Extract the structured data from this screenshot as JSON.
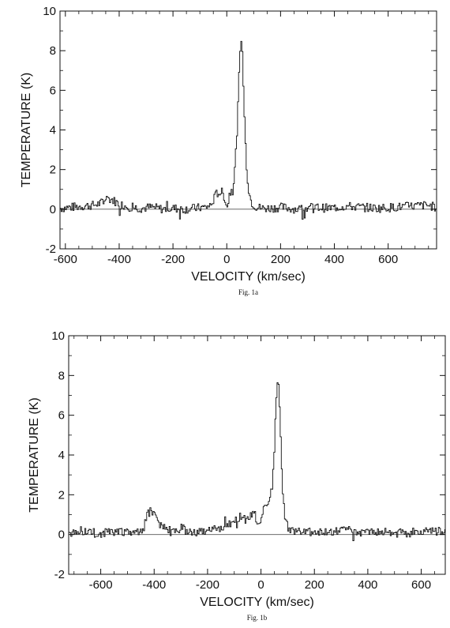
{
  "chart_data": [
    {
      "type": "line",
      "xlabel": "VELOCITY (km/sec)",
      "ylabel": "TEMPERATURE (K)",
      "caption": "Fig. 1a",
      "xlim": [
        -620,
        780
      ],
      "ylim": [
        -2,
        10
      ],
      "xticks": [
        -600,
        -400,
        -200,
        0,
        200,
        400,
        600
      ],
      "yticks": [
        -2,
        0,
        2,
        4,
        6,
        8,
        10
      ],
      "grid": false,
      "series": [
        {
          "style": "step",
          "x": [
            -620,
            -580,
            -540,
            -500,
            -470,
            -450,
            -430,
            -400,
            -360,
            -320,
            -280,
            -240,
            -200,
            -160,
            -120,
            -80,
            -60,
            -40,
            -20,
            -10,
            0,
            10,
            20,
            25,
            30,
            35,
            40,
            45,
            50,
            55,
            60,
            65,
            70,
            75,
            80,
            85,
            90,
            100,
            110,
            130,
            160,
            200,
            260,
            320,
            380,
            440,
            500,
            560,
            620,
            680,
            740,
            780
          ],
          "y": [
            0.05,
            0.1,
            0.15,
            0.2,
            0.3,
            0.55,
            0.5,
            0.25,
            0.1,
            0.05,
            0.1,
            0.0,
            0.05,
            0.0,
            0.05,
            0.1,
            0.2,
            0.8,
            0.85,
            0.6,
            0.1,
            0.9,
            0.9,
            1.5,
            2.4,
            3.6,
            5.2,
            7.2,
            8.5,
            8.3,
            6.3,
            4.2,
            2.6,
            1.6,
            1.0,
            0.6,
            0.35,
            0.2,
            0.1,
            0.05,
            0.05,
            0.1,
            0.0,
            0.1,
            0.05,
            0.15,
            0.1,
            0.05,
            0.1,
            0.15,
            0.2,
            0.1
          ]
        }
      ]
    },
    {
      "type": "line",
      "xlabel": "VELOCITY (km/sec)",
      "ylabel": "TEMPERATURE (K)",
      "caption": "Fig. 1b",
      "xlim": [
        -720,
        690
      ],
      "ylim": [
        -2,
        10
      ],
      "xticks": [
        -600,
        -400,
        -200,
        0,
        200,
        400,
        600
      ],
      "yticks": [
        -2,
        0,
        2,
        4,
        6,
        8,
        10
      ],
      "grid": false,
      "series": [
        {
          "style": "step",
          "x": [
            -720,
            -680,
            -640,
            -600,
            -560,
            -520,
            -480,
            -460,
            -440,
            -430,
            -420,
            -410,
            -400,
            -380,
            -360,
            -340,
            -300,
            -260,
            -220,
            -180,
            -140,
            -100,
            -80,
            -60,
            -40,
            -30,
            -20,
            -10,
            0,
            10,
            20,
            30,
            40,
            45,
            50,
            55,
            60,
            65,
            70,
            75,
            80,
            85,
            90,
            100,
            110,
            130,
            160,
            200,
            260,
            320,
            380,
            440,
            500,
            560,
            620,
            690
          ],
          "y": [
            0.1,
            0.2,
            0.1,
            0.05,
            0.15,
            0.1,
            0.0,
            0.1,
            0.3,
            0.9,
            1.1,
            1.2,
            0.9,
            0.5,
            0.3,
            0.15,
            0.3,
            0.1,
            0.2,
            0.3,
            0.4,
            0.6,
            0.9,
            0.7,
            1.0,
            1.2,
            0.8,
            0.6,
            0.9,
            1.4,
            1.5,
            1.8,
            2.5,
            3.2,
            5.0,
            6.6,
            7.8,
            7.6,
            5.6,
            3.5,
            2.2,
            1.3,
            0.7,
            0.3,
            0.2,
            0.1,
            0.15,
            0.05,
            0.1,
            0.2,
            0.1,
            0.15,
            0.05,
            0.1,
            0.2,
            0.1
          ]
        }
      ]
    }
  ]
}
